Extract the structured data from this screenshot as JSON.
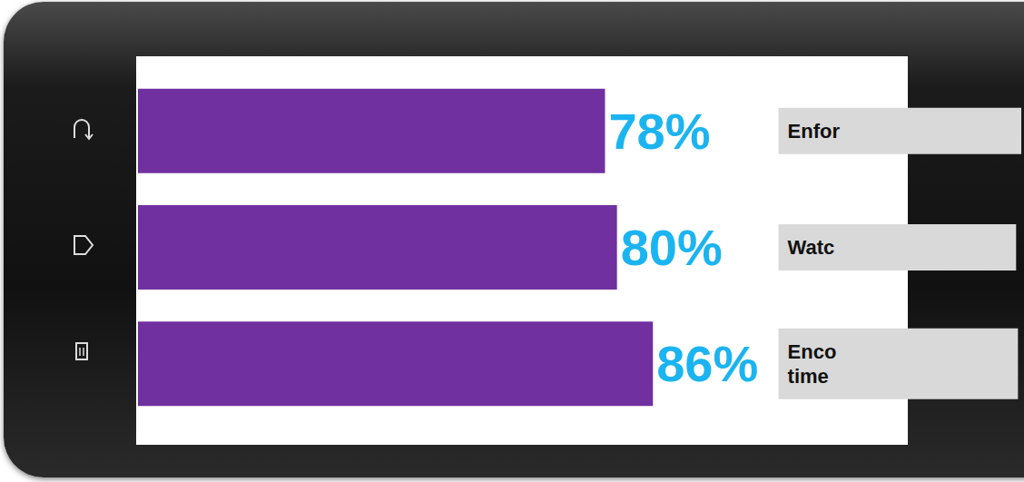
{
  "chart_data": {
    "type": "bar",
    "orientation": "horizontal",
    "categories": [
      "Enfor",
      "Watc",
      "Enco\ntime"
    ],
    "values": [
      78,
      80,
      86
    ],
    "value_labels": [
      "78%",
      "80%",
      "86%"
    ],
    "color": "#7030a0",
    "xlim": [
      0,
      100
    ],
    "data_labels": true,
    "tick_labels": "y",
    "grid": false
  }
}
